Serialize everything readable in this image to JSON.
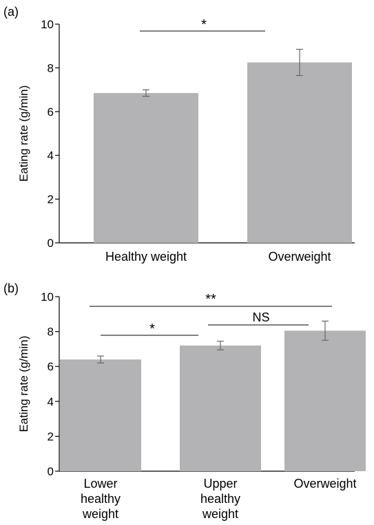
{
  "chart_data": [
    {
      "type": "bar",
      "panel": "(a)",
      "categories": [
        "Healthy weight",
        "Overweight"
      ],
      "values": [
        6.85,
        8.25
      ],
      "errors": [
        0.15,
        0.6
      ],
      "ylabel": "Eating rate (g/min)",
      "ylim": [
        0,
        10
      ],
      "yticks": [
        "0",
        "2",
        "4",
        "6",
        "8",
        "10"
      ],
      "grid": false,
      "bar_color": "#b3b3b6",
      "comparisons": [
        {
          "from": 0,
          "to": 1,
          "label": "*"
        }
      ]
    },
    {
      "type": "bar",
      "panel": "(b)",
      "categories": [
        [
          "Lower",
          "healthy",
          "weight"
        ],
        [
          "Upper",
          "healthy",
          "weight"
        ],
        [
          "Overweight"
        ]
      ],
      "values": [
        6.4,
        7.2,
        8.05
      ],
      "errors": [
        0.2,
        0.25,
        0.55
      ],
      "ylabel": "Eating rate (g/min)",
      "ylim": [
        0,
        10
      ],
      "yticks": [
        "0",
        "2",
        "4",
        "6",
        "8",
        "10"
      ],
      "grid": false,
      "bar_color": "#b3b3b6",
      "comparisons": [
        {
          "from": 0,
          "to": 2,
          "label": "**"
        },
        {
          "from": 1,
          "to": 2,
          "label": "NS"
        },
        {
          "from": 0,
          "to": 1,
          "label": "*"
        }
      ]
    }
  ]
}
